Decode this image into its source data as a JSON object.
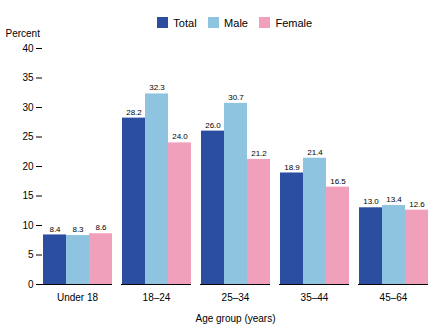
{
  "chart_data": {
    "type": "bar",
    "categories": [
      "Under 18",
      "18–24",
      "25–34",
      "35–44",
      "45–64"
    ],
    "series": [
      {
        "name": "Total",
        "color": "#2b4ea0",
        "values": [
          8.4,
          28.2,
          26.0,
          18.9,
          13.0
        ],
        "value_labels": [
          "8.4",
          "28.2",
          "26.0",
          "18.9",
          "13.0"
        ]
      },
      {
        "name": "Male",
        "color": "#8fc4e0",
        "values": [
          8.3,
          32.3,
          30.7,
          21.4,
          13.4
        ],
        "value_labels": [
          "8.3",
          "32.3",
          "30.7",
          "21.4",
          "13.4"
        ]
      },
      {
        "name": "Female",
        "color": "#f0a0ba",
        "values": [
          8.6,
          24.0,
          21.2,
          16.5,
          12.6
        ],
        "value_labels": [
          "8.6",
          "24.0",
          "21.2",
          "16.5",
          "12.6"
        ]
      }
    ],
    "xlabel": "Age group (years)",
    "ylabel": "Percent",
    "ylim": [
      0,
      40
    ],
    "yticks": [
      0,
      5,
      10,
      15,
      20,
      25,
      30,
      35,
      40
    ],
    "data_labels": true,
    "grid": false,
    "legend": "top"
  }
}
